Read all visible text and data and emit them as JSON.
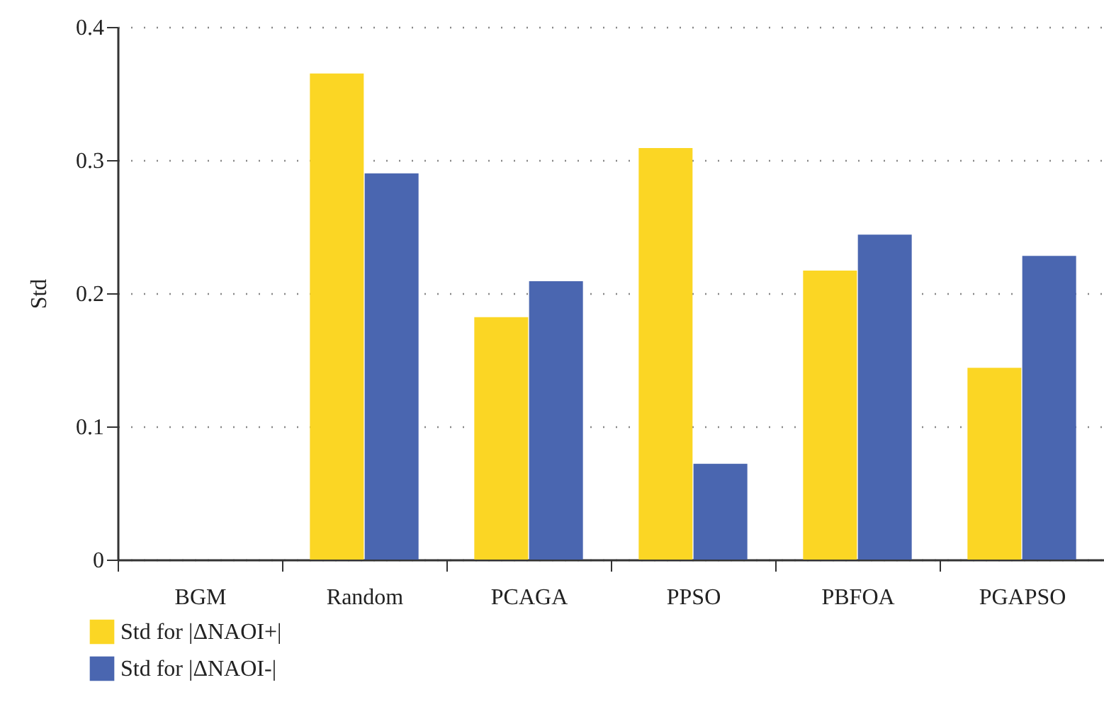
{
  "chart_data": {
    "type": "bar",
    "ylabel": "Std",
    "categories": [
      "BGM",
      "Random",
      "PCAGA",
      "PPSO",
      "PBFOA",
      "PGAPSO"
    ],
    "series": [
      {
        "name": "Std for |ΔNAOI+|",
        "color": "#fbd624",
        "values": [
          0,
          0.365,
          0.182,
          0.309,
          0.217,
          0.144
        ]
      },
      {
        "name": "Std for |ΔNAOI-|",
        "color": "#4a66b0",
        "values": [
          0,
          0.29,
          0.209,
          0.072,
          0.244,
          0.228
        ]
      }
    ],
    "ylim": [
      0,
      0.4
    ],
    "yticks": [
      0,
      0.1,
      0.2,
      0.3,
      0.4
    ],
    "grid": "y",
    "legend": "bottom left"
  }
}
